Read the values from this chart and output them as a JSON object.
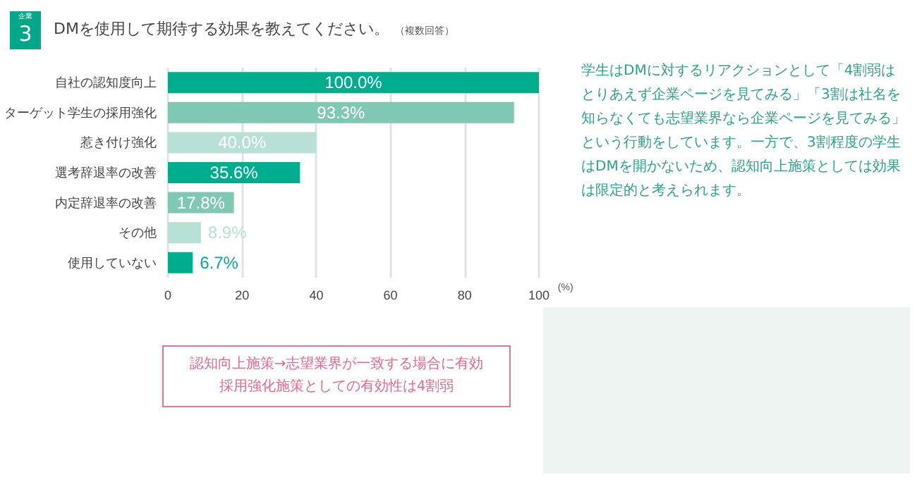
{
  "chart_data": {
    "type": "bar",
    "orientation": "horizontal",
    "title": "DMを使用して期待する効果を教えてください。",
    "subtitle": "（複数回答）",
    "categories": [
      "自社の認知度向上",
      "ターゲット学生の採用強化",
      "惹き付け強化",
      "選考辞退率の改善",
      "内定辞退率の改善",
      "その他",
      "使用していない"
    ],
    "values": [
      100.0,
      93.3,
      40.0,
      35.6,
      17.8,
      8.9,
      6.7
    ],
    "value_labels": [
      "100.0%",
      "93.3%",
      "40.0%",
      "35.6%",
      "17.8%",
      "8.9%",
      "6.7%"
    ],
    "colors": [
      "#00ae8e",
      "#7fc8b4",
      "#b8e0d4",
      "#00ae8e",
      "#7fc8b4",
      "#b8e0d4",
      "#00ae8e"
    ],
    "xlim": [
      0,
      100
    ],
    "xticks": [
      0,
      20,
      40,
      60,
      80,
      100
    ],
    "xlabel": "(%)",
    "grid": "x",
    "annotations": [
      "企業",
      "3",
      "学生はDMに対するリアクションとして「4割弱はとりあえず企業ページを見てみる」「3割は社名を知らなくても志望業界なら企業ページを見てみる」という行動をしています。一方で、3割程度の学生はDMを開かないため、認知向上施策としては効果は限定的と考えられます。",
      "認知向上施策→志望業界が一致する場合に有効",
      "採用強化施策としての有効性は4割弱"
    ]
  }
}
